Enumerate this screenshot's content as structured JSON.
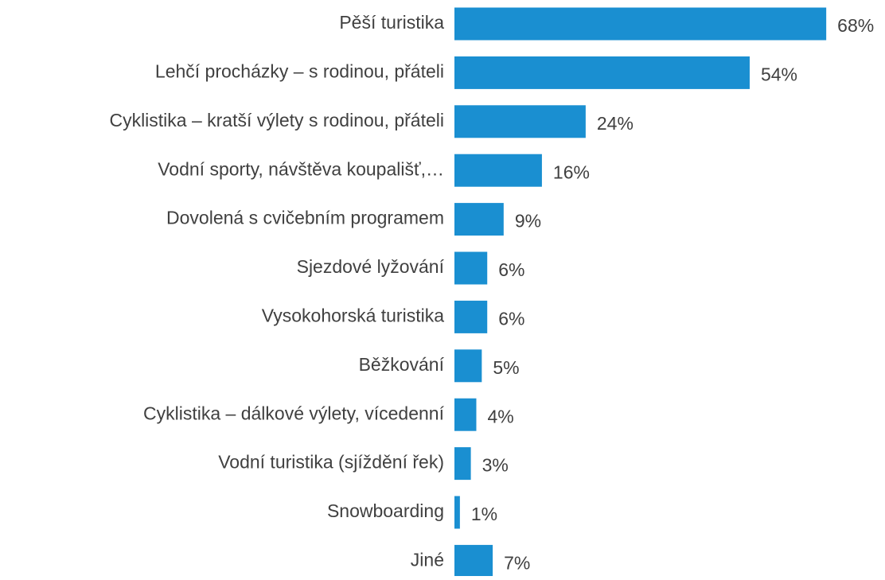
{
  "chart_data": {
    "type": "bar",
    "orientation": "horizontal",
    "categories": [
      "Pěší turistika",
      "Lehčí procházky – s rodinou, přáteli",
      "Cyklistika – kratší výlety s rodinou, přáteli",
      "Vodní sporty, návštěva koupališť,…",
      "Dovolená s cvičebním programem",
      "Sjezdové lyžování",
      "Vysokohorská turistika",
      "Běžkování",
      "Cyklistika – dálkové výlety, vícedenní",
      "Vodní turistika (sjíždění řek)",
      "Snowboarding",
      "Jiné"
    ],
    "values": [
      68,
      54,
      24,
      16,
      9,
      6,
      6,
      5,
      4,
      3,
      1,
      7
    ],
    "value_labels": [
      "68%",
      "54%",
      "24%",
      "16%",
      "9%",
      "6%",
      "6%",
      "5%",
      "4%",
      "3%",
      "1%",
      "7%"
    ],
    "color": "#1a8fd1"
  }
}
